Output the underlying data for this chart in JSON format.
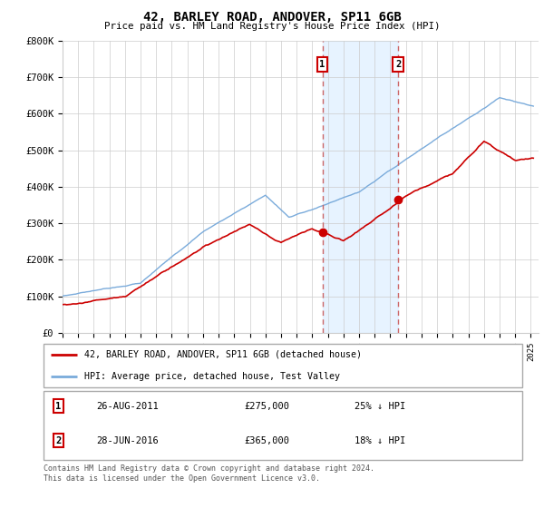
{
  "title": "42, BARLEY ROAD, ANDOVER, SP11 6GB",
  "subtitle": "Price paid vs. HM Land Registry's House Price Index (HPI)",
  "ylabel_ticks": [
    "£0",
    "£100K",
    "£200K",
    "£300K",
    "£400K",
    "£500K",
    "£600K",
    "£700K",
    "£800K"
  ],
  "ytick_values": [
    0,
    100000,
    200000,
    300000,
    400000,
    500000,
    600000,
    700000,
    800000
  ],
  "ylim": [
    0,
    800000
  ],
  "xlim_start": 1995.0,
  "xlim_end": 2025.5,
  "hpi_color": "#7aabdb",
  "price_color": "#cc0000",
  "marker1_date": 2011.65,
  "marker2_date": 2016.5,
  "sale1_price": 275000,
  "sale2_price": 365000,
  "sale1_label": "26-AUG-2011",
  "sale2_label": "28-JUN-2016",
  "sale1_text": "£275,000",
  "sale2_text": "£365,000",
  "sale1_pct": "25% ↓ HPI",
  "sale2_pct": "18% ↓ HPI",
  "legend_property": "42, BARLEY ROAD, ANDOVER, SP11 6GB (detached house)",
  "legend_hpi": "HPI: Average price, detached house, Test Valley",
  "footer": "Contains HM Land Registry data © Crown copyright and database right 2024.\nThis data is licensed under the Open Government Licence v3.0.",
  "highlight_color": "#ddeeff",
  "vline_color": "#cc6666"
}
